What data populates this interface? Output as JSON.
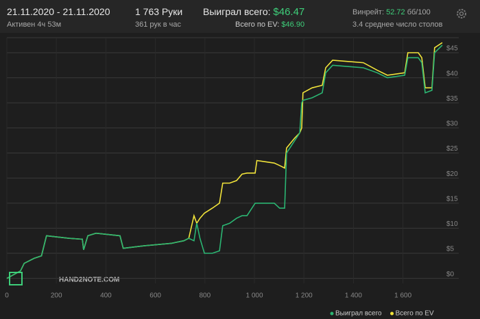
{
  "header": {
    "date_range": "21.11.2020 - 21.11.2020",
    "active_time": "Активен 4ч 53м",
    "hands": "1 763 Руки",
    "hands_per_hour": "361 рук в час",
    "won_label": "Выиграл всего:",
    "won_value": "$46.47",
    "ev_label": "Всего по EV:",
    "ev_value": "$46.90",
    "winrate_label": "Винрейт:",
    "winrate_value": "52.72",
    "winrate_unit": "бб/100",
    "avg_tables": "3.4 среднее число столов"
  },
  "chart_data": {
    "type": "line",
    "watermark": "HAND2NOTE.COM",
    "x": [
      0,
      55,
      70,
      110,
      140,
      160,
      250,
      305,
      310,
      327,
      360,
      457,
      470,
      554,
      665,
      715,
      735,
      756,
      767,
      780,
      798,
      830,
      859,
      872,
      900,
      928,
      950,
      970,
      1003,
      1010,
      1080,
      1102,
      1122,
      1130,
      1163,
      1183,
      1191,
      1196,
      1233,
      1274,
      1288,
      1316,
      1440,
      1496,
      1537,
      1607,
      1620,
      1662,
      1676,
      1690,
      1717,
      1728,
      1759
    ],
    "series": [
      {
        "name": "Всего по EV",
        "color": "#f2e43a",
        "values": [
          0,
          1.5,
          3,
          4,
          4.5,
          8.5,
          8,
          7.8,
          5.7,
          8.5,
          9,
          8.5,
          6,
          6.5,
          7,
          7.5,
          8,
          12.5,
          11,
          12,
          13,
          14,
          15,
          19,
          19,
          19.5,
          20.8,
          21,
          21,
          23.5,
          23,
          22.5,
          22,
          26,
          28,
          29,
          30,
          37,
          38,
          38.5,
          42,
          43.5,
          43,
          41.5,
          40.5,
          41,
          45,
          45,
          44,
          38,
          38,
          46,
          47
        ]
      },
      {
        "name": "Выиграл всего",
        "color": "#2bb673",
        "values": [
          0,
          1.5,
          3,
          4,
          4.5,
          8.5,
          8,
          7.8,
          5.7,
          8.5,
          9,
          8.5,
          6,
          6.5,
          7,
          7.5,
          8,
          7.5,
          11,
          8,
          5,
          5,
          5.5,
          10.5,
          11,
          12,
          12.5,
          12.5,
          15,
          15,
          15,
          14,
          14,
          25,
          27.5,
          29,
          35,
          35.5,
          36,
          37,
          41,
          42.5,
          42,
          41,
          40,
          40.5,
          44,
          44,
          43,
          37,
          37.5,
          45,
          46.5
        ]
      }
    ],
    "xlim": [
      0,
      1770
    ],
    "ylim": [
      -1,
      48
    ],
    "xticks": [
      0,
      200,
      400,
      600,
      800,
      {
        "value": 1000,
        "label": "1 000"
      },
      {
        "value": 1200,
        "label": "1 200"
      },
      {
        "value": 1400,
        "label": "1 400"
      },
      {
        "value": 1600,
        "label": "1 600"
      }
    ],
    "yticks": [
      {
        "value": 0,
        "label": "$0"
      },
      {
        "value": 5,
        "label": "$5"
      },
      {
        "value": 10,
        "label": "$10"
      },
      {
        "value": 15,
        "label": "$15"
      },
      {
        "value": 20,
        "label": "$20"
      },
      {
        "value": 25,
        "label": "$25"
      },
      {
        "value": 30,
        "label": "$30"
      },
      {
        "value": 35,
        "label": "$35"
      },
      {
        "value": 40,
        "label": "$40"
      },
      {
        "value": 45,
        "label": "$45"
      }
    ],
    "grid": true
  }
}
